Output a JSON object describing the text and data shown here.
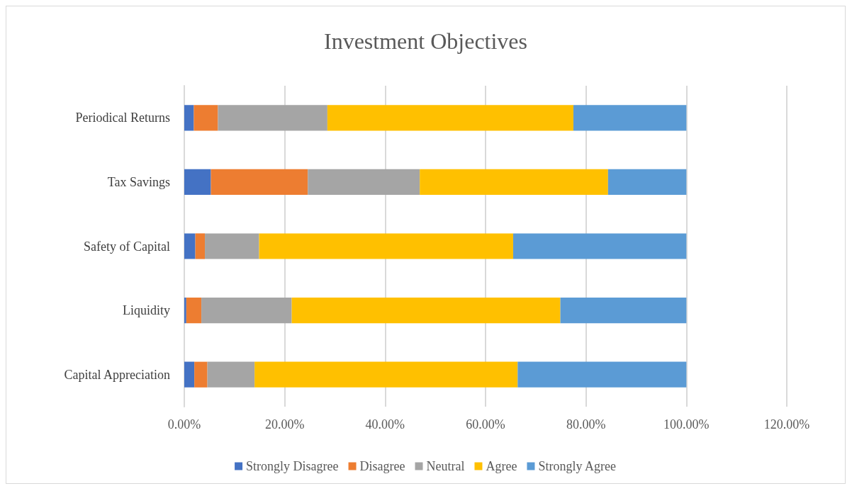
{
  "chart_data": {
    "type": "bar",
    "title": "Investment Objectives",
    "orientation": "horizontal",
    "stacked": true,
    "categories": [
      "Periodical Returns",
      "Tax Savings",
      "Safety of Capital",
      "Liquidity",
      "Capital Appreciation"
    ],
    "series": [
      {
        "name": "Strongly Disagree",
        "color": "#4472c4",
        "values": [
          1.9,
          5.3,
          2.2,
          0.4,
          2.0
        ]
      },
      {
        "name": "Disagree",
        "color": "#ed7d31",
        "values": [
          4.8,
          19.3,
          1.9,
          3.0,
          2.6
        ]
      },
      {
        "name": "Neutral",
        "color": "#a5a5a5",
        "values": [
          21.8,
          22.3,
          10.8,
          18.0,
          9.4
        ]
      },
      {
        "name": "Agree",
        "color": "#ffc000",
        "values": [
          49.0,
          37.5,
          50.6,
          53.5,
          52.4
        ]
      },
      {
        "name": "Strongly Agree",
        "color": "#5b9bd5",
        "values": [
          22.5,
          15.6,
          34.5,
          25.1,
          33.6
        ]
      }
    ],
    "xlim": [
      0,
      120
    ],
    "xticks": [
      {
        "value": 0,
        "label": "0.00%"
      },
      {
        "value": 20,
        "label": "20.00%"
      },
      {
        "value": 40,
        "label": "40.00%"
      },
      {
        "value": 60,
        "label": "60.00%"
      },
      {
        "value": 80,
        "label": "80.00%"
      },
      {
        "value": 100,
        "label": "100.00%"
      },
      {
        "value": 120,
        "label": "120.00%"
      }
    ],
    "grid": "x",
    "legend": "bottom"
  }
}
